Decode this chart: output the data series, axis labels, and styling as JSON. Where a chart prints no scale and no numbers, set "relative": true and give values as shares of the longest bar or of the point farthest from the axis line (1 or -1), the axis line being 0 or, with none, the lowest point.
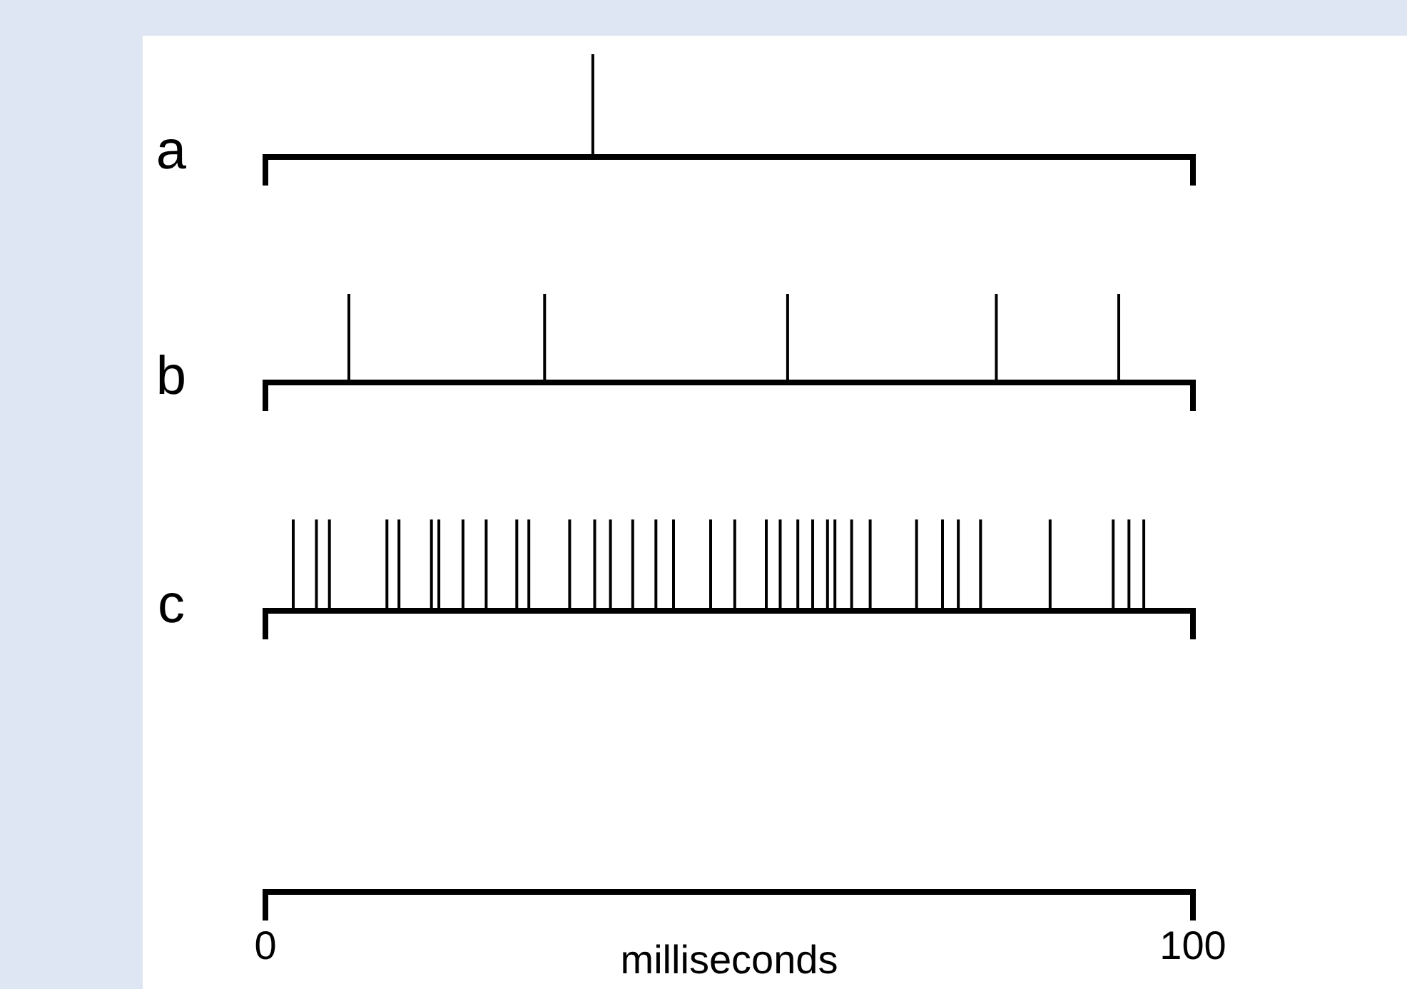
{
  "chart_data": [
    {
      "type": "bar",
      "title": "a",
      "x": [
        35.3
      ],
      "values": [
        1
      ],
      "color": "#000000",
      "relative": true,
      "xlim": [
        0,
        100
      ],
      "tick_labels": false
    },
    {
      "type": "bar",
      "title": "b",
      "x": [
        9.0,
        30.1,
        56.3,
        78.8,
        92.0
      ],
      "values": [
        1,
        1,
        1,
        1,
        1
      ],
      "color": "#000000",
      "relative": true,
      "xlim": [
        0,
        100
      ],
      "tick_labels": false
    },
    {
      "type": "bar",
      "title": "c",
      "x": [
        3.0,
        5.5,
        6.9,
        13.1,
        14.4,
        17.9,
        18.7,
        21.3,
        23.8,
        27.1,
        28.4,
        32.8,
        35.5,
        37.2,
        39.6,
        42.1,
        44.0,
        48.0,
        50.6,
        54.0,
        55.5,
        57.4,
        59.0,
        60.6,
        61.4,
        63.2,
        65.2,
        70.2,
        73.0,
        74.7,
        77.1,
        84.6,
        91.4,
        93.1,
        94.7
      ],
      "values": [
        1,
        1,
        1,
        1,
        1,
        1,
        1,
        1,
        1,
        1,
        1,
        1,
        1,
        1,
        1,
        1,
        1,
        1,
        1,
        1,
        1,
        1,
        1,
        1,
        1,
        1,
        1,
        1,
        1,
        1,
        1,
        1,
        1,
        1,
        1
      ],
      "color": "#000000",
      "relative": true,
      "xlim": [
        0,
        100
      ],
      "xticks": [
        0,
        100
      ],
      "xlabel": "milliseconds",
      "tick_labels": "x"
    }
  ]
}
